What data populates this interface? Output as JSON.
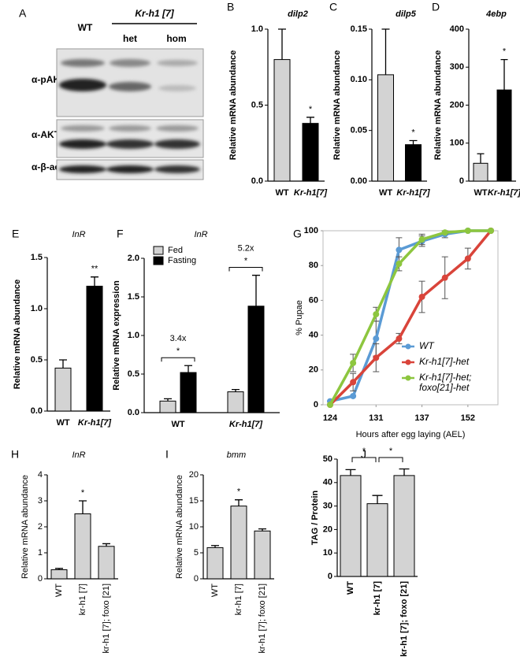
{
  "blot": {
    "panel": "A",
    "control": "WT",
    "genotype": "Kr-h1 [7]",
    "columns": [
      "het",
      "hom"
    ],
    "rows": [
      "α-pAKT",
      "α-AKT",
      "α-β-actin"
    ]
  },
  "chart_data": [
    {
      "type": "bar",
      "panel": "B",
      "title": "dilp2",
      "y_label": "Relative mRNA abundance",
      "categories": [
        "WT",
        "Kr-h1[7]"
      ],
      "values": [
        0.8,
        0.38
      ],
      "errors": [
        0.2,
        0.04
      ],
      "colors": [
        "#d3d3d3",
        "#000000"
      ],
      "significance": [
        null,
        "*"
      ],
      "ylim": [
        0,
        1.0
      ],
      "yticks": [
        {
          "value": 0,
          "label": "0.0"
        },
        {
          "value": 0.5,
          "label": "0.5"
        },
        {
          "value": 1.0,
          "label": "1.0"
        }
      ],
      "bold_labels": true
    },
    {
      "type": "bar",
      "panel": "C",
      "title": "dilp5",
      "y_label": "Relative mRNA abundance",
      "categories": [
        "WT",
        "Kr-h1[7]"
      ],
      "values": [
        0.105,
        0.036
      ],
      "errors": [
        0.045,
        0.004
      ],
      "colors": [
        "#d3d3d3",
        "#000000"
      ],
      "significance": [
        null,
        "*"
      ],
      "ylim": [
        0,
        0.15
      ],
      "yticks": [
        {
          "value": 0,
          "label": "0.00"
        },
        0.05,
        {
          "value": 0.1,
          "label": "0.10"
        },
        0.15
      ],
      "bold_labels": true
    },
    {
      "type": "bar",
      "panel": "D",
      "title": "4ebp",
      "y_label": "Relative mRNA abundance",
      "categories": [
        "WT",
        "Kr-h1[7]"
      ],
      "values": [
        47,
        240
      ],
      "errors": [
        25,
        80
      ],
      "colors": [
        "#d3d3d3",
        "#000000"
      ],
      "significance": [
        null,
        "*"
      ],
      "ylim": [
        0,
        400
      ],
      "yticks": [
        0,
        100,
        200,
        300,
        400
      ],
      "bold_labels": true
    },
    {
      "type": "bar",
      "panel": "E",
      "title": "InR",
      "y_label": "Relative mRNA abundance",
      "categories": [
        "WT",
        "Kr-h1[7]"
      ],
      "values": [
        0.42,
        1.22
      ],
      "errors": [
        0.08,
        0.09
      ],
      "colors": [
        "#d3d3d3",
        "#000000"
      ],
      "significance": [
        null,
        "**"
      ],
      "ylim": [
        0,
        1.5
      ],
      "yticks": [
        {
          "value": 0,
          "label": "0.0"
        },
        0.5,
        {
          "value": 1,
          "label": "1.0"
        },
        1.5
      ],
      "bold_labels": true
    },
    {
      "type": "grouped_bar",
      "panel": "F",
      "title": "InR",
      "y_label": "Relative mRNA expression",
      "categories": [
        "WT",
        "Kr-h1[7]"
      ],
      "series": [
        {
          "name": "Fed",
          "color": "#d3d3d3",
          "values": [
            0.15,
            0.27
          ],
          "errors": [
            0.03,
            0.03
          ]
        },
        {
          "name": "Fasting",
          "color": "#000000",
          "values": [
            0.52,
            1.38
          ],
          "errors": [
            0.09,
            0.4
          ]
        }
      ],
      "group_annotations": [
        [
          "3.4x",
          "*"
        ],
        [
          "5.2x",
          "*"
        ]
      ],
      "ylim": [
        0,
        2.0
      ],
      "yticks": [
        {
          "value": 0,
          "label": "0.0"
        },
        0.5,
        {
          "value": 1,
          "label": "1.0"
        },
        1.5,
        {
          "value": 2,
          "label": "2.0"
        }
      ],
      "legend": "top-left",
      "bold_labels": true
    },
    {
      "type": "line",
      "panel": "G",
      "x_label": "Hours after egg laying (AEL)",
      "y_label": "% Pupae",
      "categories": [
        "124",
        null,
        "131",
        null,
        "137",
        null,
        "152",
        null
      ],
      "series": [
        {
          "name": "WT",
          "color": "#5b9bd5",
          "values": [
            2,
            5,
            38,
            89,
            94,
            98,
            100,
            100
          ],
          "errors": [
            0,
            0,
            10,
            7,
            3,
            2,
            0,
            0
          ]
        },
        {
          "name": "Kr-h1[7]-het",
          "color": "#d9443a",
          "values": [
            0,
            13,
            27,
            38,
            62,
            73,
            84,
            100
          ],
          "errors": [
            0,
            5,
            8,
            3,
            9,
            12,
            6,
            0
          ]
        },
        {
          "name": "Kr-h1[7]-het; foxo[21]-het",
          "color": "#8dc63f",
          "values": [
            0,
            24,
            52,
            81,
            95,
            99,
            100,
            100
          ],
          "errors": [
            0,
            5,
            4,
            4,
            3,
            1,
            0,
            0
          ]
        }
      ],
      "ylim": [
        0,
        100
      ],
      "yticks": [
        0,
        20,
        40,
        60,
        80,
        100
      ],
      "legend": "bottom-right",
      "bold_labels": true
    },
    {
      "type": "bar",
      "panel": "H",
      "title": "InR",
      "y_label": "Relative mRNA abundance",
      "categories": [
        "WT",
        "kr-h1 [7]",
        "kr-h1 [7]; foxo [21]"
      ],
      "values": [
        0.35,
        2.5,
        1.25
      ],
      "errors": [
        0.05,
        0.5,
        0.1
      ],
      "colors": [
        "#d3d3d3",
        "#d3d3d3",
        "#d3d3d3"
      ],
      "significance": [
        null,
        "*",
        null
      ],
      "ylim": [
        0,
        4
      ],
      "yticks": [
        0,
        1,
        2,
        3,
        4
      ],
      "rotate_xlabels": true,
      "bold_labels": false
    },
    {
      "type": "bar",
      "panel": "I",
      "title": "bmm",
      "y_label": "Relative mRNA abundance",
      "categories": [
        "WT",
        "kr-h1 [7]",
        "kr-h1 [7]; foxo [21]"
      ],
      "values": [
        6,
        14,
        9.2
      ],
      "errors": [
        0.4,
        1.2,
        0.4
      ],
      "colors": [
        "#d3d3d3",
        "#d3d3d3",
        "#d3d3d3"
      ],
      "significance": [
        null,
        "*",
        null
      ],
      "ylim": [
        0,
        20
      ],
      "yticks": [
        0,
        5,
        10,
        15,
        20
      ],
      "rotate_xlabels": true,
      "bold_labels": false
    },
    {
      "type": "bar",
      "panel": "J",
      "y_label": "TAG / Protein",
      "categories": [
        "WT",
        "kr-h1 [7]",
        "kr-h1 [7]; foxo [21]"
      ],
      "values": [
        43,
        31,
        43
      ],
      "errors": [
        2.5,
        3.5,
        2.8
      ],
      "colors": [
        "#d3d3d3",
        "#d3d3d3",
        "#d3d3d3"
      ],
      "comparisons": [
        {
          "from": "WT",
          "to": "kr-h1 [7]",
          "label": "*"
        },
        {
          "from": "kr-h1 [7]",
          "to": "kr-h1 [7]; foxo [21]",
          "label": "*"
        }
      ],
      "ylim": [
        0,
        50
      ],
      "yticks": [
        0,
        10,
        20,
        30,
        40,
        50
      ],
      "rotate_xlabels": true,
      "bold_labels": true
    }
  ]
}
